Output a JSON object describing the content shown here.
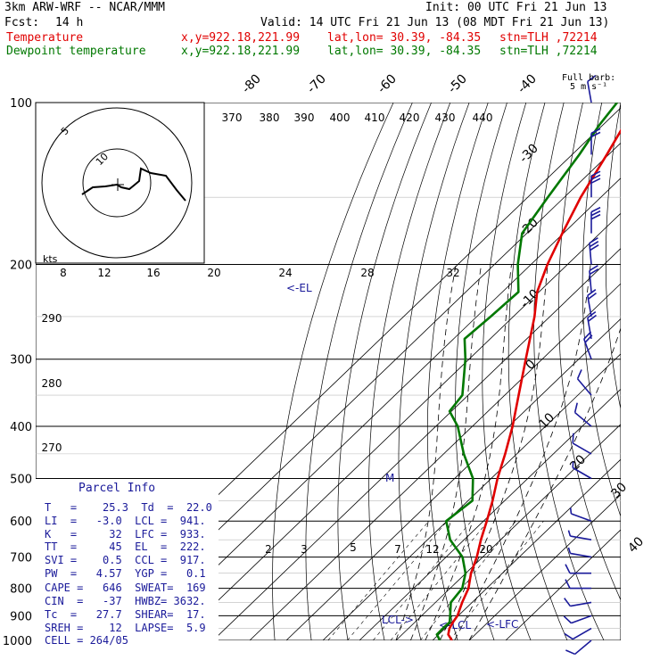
{
  "header": {
    "model": "3km ARW-WRF -- NCAR/MMM",
    "init": "Init: 00 UTC Fri 21 Jun 13",
    "fcst_label": "Fcst:",
    "fcst_value": "14 h",
    "valid": "Valid: 14 UTC Fri 21 Jun 13 (08 MDT Fri 21 Jun 13)",
    "temp_label": "Temperature",
    "dew_label": "Dewpoint temperature",
    "xy": "x,y=922.18,221.99",
    "latlon": "lat,lon= 30.39, -84.35",
    "stn": "stn=TLH ,72214"
  },
  "fullbarb_label": [
    "Full barb:",
    "5 m s⁻¹"
  ],
  "parcel_info": {
    "title": "Parcel Info",
    "lines": [
      "T   =    25.3  Td  =  22.0",
      "LI  =   -3.0  LCL =  941.",
      "K   =     32  LFC =  933.",
      "TT  =     45  EL  =  222.",
      "SVI =    0.5  CCL =  917.",
      "PW  =   4.57  YGP =   0.1",
      "CAPE =   646  SWEAT=  169",
      "CIN  =   -37  HWBZ= 3632.",
      "Tc  =   27.7  SHEAR=  17.",
      "SREH =    12  LAPSE=  5.9",
      "CELL = 264/05"
    ]
  },
  "colors": {
    "temperature": "#e00000",
    "dewpoint": "#007800",
    "skew_lines": "#000000",
    "parcel_text": "#1a1a9a",
    "wind_barbs": "#1a1a9a"
  },
  "chart_data": {
    "type": "line",
    "chart_kind": "skew-T log-P sounding",
    "y_axis": "pressure (hPa), log scale",
    "y_ticks": [
      100,
      200,
      300,
      400,
      500,
      600,
      700,
      800,
      900,
      1000
    ],
    "skewed_isotherm_labels": [
      "-80",
      "-70",
      "-60",
      "-50",
      "-40",
      "-30",
      "-20",
      "-10",
      "0",
      "10",
      "20",
      "30",
      "40"
    ],
    "isotherms_c": [
      -80,
      -70,
      -60,
      -50,
      -40,
      -30,
      -20,
      -10,
      0,
      10,
      20,
      30,
      40
    ],
    "theta_labels": [
      "370",
      "380",
      "390",
      "400",
      "410",
      "420",
      "430",
      "440"
    ],
    "mixing_ratio_labels": [
      "2",
      "3",
      "5",
      "7",
      "12",
      "20"
    ],
    "mixing_ratios": [
      2,
      3,
      5,
      7,
      12,
      20
    ],
    "theta_e_left_labels": [
      "290",
      "280",
      "270"
    ],
    "hodograph_speed_labels": [
      "8",
      "12",
      "16",
      "20",
      "24",
      "28",
      "32"
    ],
    "hodograph_kts_label": "kts",
    "hodograph_ring_labels": [
      "5",
      "10"
    ],
    "annotations": [
      "<-EL",
      "LCL->",
      "<-LCL",
      "<-LFC",
      "M"
    ],
    "series": [
      {
        "name": "Temperature",
        "points": [
          {
            "p": 1000,
            "t": 25.3
          },
          {
            "p": 975,
            "t": 22.6
          },
          {
            "p": 950,
            "t": 21.2
          },
          {
            "p": 925,
            "t": 20.4
          },
          {
            "p": 900,
            "t": 19.8
          },
          {
            "p": 850,
            "t": 17.3
          },
          {
            "p": 800,
            "t": 15.0
          },
          {
            "p": 750,
            "t": 11.4
          },
          {
            "p": 700,
            "t": 8.4
          },
          {
            "p": 650,
            "t": 4.6
          },
          {
            "p": 600,
            "t": 0.9
          },
          {
            "p": 550,
            "t": -3.3
          },
          {
            "p": 500,
            "t": -8.3
          },
          {
            "p": 450,
            "t": -13.2
          },
          {
            "p": 400,
            "t": -19.0
          },
          {
            "p": 350,
            "t": -26.2
          },
          {
            "p": 300,
            "t": -34.5
          },
          {
            "p": 250,
            "t": -44.2
          },
          {
            "p": 225,
            "t": -50.5
          },
          {
            "p": 200,
            "t": -55.5
          },
          {
            "p": 175,
            "t": -60.3
          },
          {
            "p": 150,
            "t": -65.5
          },
          {
            "p": 125,
            "t": -70.5
          },
          {
            "p": 110,
            "t": -74.2
          },
          {
            "p": 100,
            "t": -77.0
          }
        ]
      },
      {
        "name": "Dewpoint temperature",
        "points": [
          {
            "p": 1000,
            "t": 22.0
          },
          {
            "p": 975,
            "t": 19.5
          },
          {
            "p": 950,
            "t": 19.4
          },
          {
            "p": 925,
            "t": 19.5
          },
          {
            "p": 900,
            "t": 17.8
          },
          {
            "p": 850,
            "t": 14.2
          },
          {
            "p": 800,
            "t": 13.3
          },
          {
            "p": 750,
            "t": 9.9
          },
          {
            "p": 700,
            "t": 4.5
          },
          {
            "p": 650,
            "t": -3.8
          },
          {
            "p": 600,
            "t": -10.2
          },
          {
            "p": 550,
            "t": -8.8
          },
          {
            "p": 500,
            "t": -15.0
          },
          {
            "p": 450,
            "t": -24.5
          },
          {
            "p": 400,
            "t": -34.0
          },
          {
            "p": 375,
            "t": -40.5
          },
          {
            "p": 350,
            "t": -41.6
          },
          {
            "p": 300,
            "t": -51.0
          },
          {
            "p": 275,
            "t": -57.0
          },
          {
            "p": 250,
            "t": -56.2
          },
          {
            "p": 225,
            "t": -55.6
          },
          {
            "p": 200,
            "t": -63.6
          },
          {
            "p": 175,
            "t": -71.3
          },
          {
            "p": 150,
            "t": -74.5
          },
          {
            "p": 125,
            "t": -78.0
          },
          {
            "p": 110,
            "t": -81.0
          },
          {
            "p": 100,
            "t": -82.5
          }
        ]
      }
    ],
    "wind_barbs_m_s": [
      {
        "p": 1000,
        "speed": 5,
        "dir": 230
      },
      {
        "p": 950,
        "speed": 5,
        "dir": 240
      },
      {
        "p": 900,
        "speed": 5,
        "dir": 250
      },
      {
        "p": 850,
        "speed": 5,
        "dir": 260
      },
      {
        "p": 800,
        "speed": 5,
        "dir": 270
      },
      {
        "p": 750,
        "speed": 5,
        "dir": 270
      },
      {
        "p": 700,
        "speed": 3,
        "dir": 280
      },
      {
        "p": 650,
        "speed": 3,
        "dir": 280
      },
      {
        "p": 600,
        "speed": 3,
        "dir": 290
      },
      {
        "p": 500,
        "speed": 3,
        "dir": 300
      },
      {
        "p": 450,
        "speed": 5,
        "dir": 300
      },
      {
        "p": 400,
        "speed": 5,
        "dir": 310
      },
      {
        "p": 350,
        "speed": 5,
        "dir": 320
      },
      {
        "p": 300,
        "speed": 10,
        "dir": 340
      },
      {
        "p": 275,
        "speed": 10,
        "dir": 350
      },
      {
        "p": 250,
        "speed": 10,
        "dir": 350
      },
      {
        "p": 225,
        "speed": 10,
        "dir": 355
      },
      {
        "p": 200,
        "speed": 15,
        "dir": 355
      },
      {
        "p": 175,
        "speed": 15,
        "dir": 0
      },
      {
        "p": 150,
        "speed": 15,
        "dir": 0
      },
      {
        "p": 125,
        "speed": 10,
        "dir": 0
      },
      {
        "p": 100,
        "speed": 5,
        "dir": 350
      }
    ]
  }
}
